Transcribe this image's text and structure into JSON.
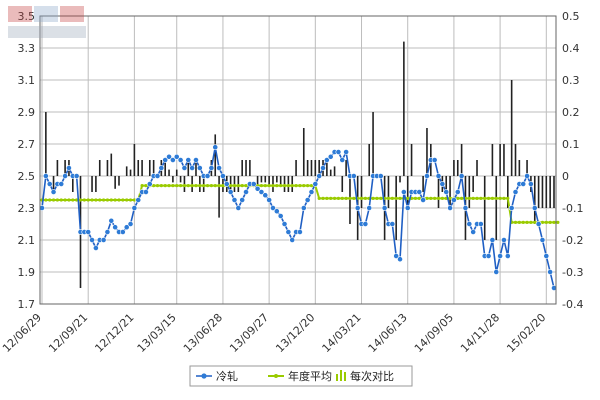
{
  "watermark": {
    "brand_text": "Mysteel.com",
    "seal_text": "我的钢铁"
  },
  "colors": {
    "plot_bg": "#ffffff",
    "grid": "#bdbdbd",
    "axis": "#666666",
    "series_line": "#1f5fc4",
    "series_marker": "#2e7bd6",
    "avg_line": "#9acb00",
    "bar": "#222222"
  },
  "legend": {
    "items": [
      "冷轧",
      "年度平均",
      "每次对比"
    ],
    "placement": "bottom-center"
  },
  "chart_data": {
    "type": "line",
    "title": "",
    "xlabel": "",
    "ylabel": "",
    "ylim": [
      1.7,
      3.5
    ],
    "y2lim": [
      -0.4,
      0.5
    ],
    "y_ticks": [
      "1.7",
      "1.9",
      "2.1",
      "2.3",
      "2.5",
      "2.7",
      "2.9",
      "3.1",
      "3.3",
      "3.5"
    ],
    "y2_ticks": [
      "-0.4",
      "-0.3",
      "-0.2",
      "-0.1",
      "0",
      "0.1",
      "0.2",
      "0.3",
      "0.4",
      "0.5"
    ],
    "x_tick_labels": [
      "12/06/29",
      "12/09/21",
      "12/12/21",
      "13/03/15",
      "13/06/28",
      "13/09/27",
      "13/12/20",
      "14/03/21",
      "14/06/13",
      "14/09/05",
      "14/11/28",
      "15/02/20"
    ],
    "x_tick_index": [
      0,
      12,
      24,
      35,
      47,
      59,
      71,
      83,
      95,
      107,
      119,
      131
    ],
    "grid": true,
    "series": [
      {
        "name": "冷轧",
        "axis": "left",
        "values": [
          2.3,
          2.5,
          2.45,
          2.4,
          2.45,
          2.45,
          2.5,
          2.55,
          2.5,
          2.5,
          2.15,
          2.15,
          2.15,
          2.1,
          2.05,
          2.1,
          2.1,
          2.15,
          2.22,
          2.18,
          2.15,
          2.15,
          2.18,
          2.2,
          2.3,
          2.35,
          2.4,
          2.4,
          2.45,
          2.5,
          2.5,
          2.55,
          2.6,
          2.62,
          2.6,
          2.62,
          2.6,
          2.55,
          2.6,
          2.55,
          2.6,
          2.55,
          2.5,
          2.5,
          2.55,
          2.68,
          2.55,
          2.5,
          2.45,
          2.4,
          2.35,
          2.3,
          2.35,
          2.4,
          2.45,
          2.45,
          2.42,
          2.4,
          2.38,
          2.35,
          2.3,
          2.28,
          2.25,
          2.2,
          2.15,
          2.1,
          2.15,
          2.15,
          2.3,
          2.35,
          2.4,
          2.45,
          2.5,
          2.55,
          2.6,
          2.62,
          2.65,
          2.65,
          2.6,
          2.65,
          2.5,
          2.5,
          2.3,
          2.2,
          2.2,
          2.3,
          2.5,
          2.5,
          2.5,
          2.3,
          2.2,
          2.2,
          2.0,
          1.98,
          2.4,
          2.3,
          2.4,
          2.4,
          2.4,
          2.35,
          2.5,
          2.6,
          2.6,
          2.5,
          2.45,
          2.4,
          2.3,
          2.35,
          2.4,
          2.5,
          2.3,
          2.2,
          2.15,
          2.2,
          2.2,
          2.0,
          2.0,
          2.1,
          1.9,
          2.0,
          2.1,
          2.0,
          2.3,
          2.4,
          2.45,
          2.45,
          2.5,
          2.45,
          2.3,
          2.2,
          2.1,
          2.0,
          1.9,
          1.8
        ]
      },
      {
        "name": "年度平均",
        "axis": "left",
        "values": [
          2.35,
          2.35,
          2.35,
          2.35,
          2.35,
          2.35,
          2.35,
          2.35,
          2.35,
          2.35,
          2.35,
          2.35,
          2.35,
          2.35,
          2.35,
          2.35,
          2.35,
          2.35,
          2.35,
          2.35,
          2.35,
          2.35,
          2.35,
          2.35,
          2.35,
          2.35,
          2.44,
          2.44,
          2.44,
          2.44,
          2.44,
          2.44,
          2.44,
          2.44,
          2.44,
          2.44,
          2.44,
          2.44,
          2.44,
          2.44,
          2.44,
          2.44,
          2.44,
          2.44,
          2.44,
          2.44,
          2.44,
          2.44,
          2.44,
          2.44,
          2.44,
          2.44,
          2.44,
          2.44,
          2.44,
          2.44,
          2.44,
          2.44,
          2.44,
          2.44,
          2.44,
          2.44,
          2.44,
          2.44,
          2.44,
          2.44,
          2.44,
          2.44,
          2.44,
          2.44,
          2.44,
          2.44,
          2.36,
          2.36,
          2.36,
          2.36,
          2.36,
          2.36,
          2.36,
          2.36,
          2.36,
          2.36,
          2.36,
          2.36,
          2.36,
          2.36,
          2.36,
          2.36,
          2.36,
          2.36,
          2.36,
          2.36,
          2.36,
          2.36,
          2.36,
          2.36,
          2.36,
          2.36,
          2.36,
          2.36,
          2.36,
          2.36,
          2.36,
          2.36,
          2.36,
          2.36,
          2.36,
          2.36,
          2.36,
          2.36,
          2.36,
          2.36,
          2.36,
          2.36,
          2.36,
          2.36,
          2.36,
          2.36,
          2.36,
          2.36,
          2.36,
          2.36,
          2.21,
          2.21,
          2.21,
          2.21,
          2.21,
          2.21,
          2.21,
          2.21,
          2.21,
          2.21,
          2.21,
          2.21,
          2.21
        ]
      },
      {
        "name": "每次对比",
        "axis": "right",
        "type": "bar",
        "values": [
          0.0,
          0.2,
          0.0,
          -0.05,
          0.05,
          0.0,
          0.05,
          0.05,
          -0.05,
          0.0,
          -0.35,
          0.0,
          0.0,
          -0.05,
          -0.05,
          0.05,
          0.0,
          0.05,
          0.07,
          -0.04,
          -0.03,
          0.0,
          0.03,
          0.02,
          0.1,
          0.05,
          0.05,
          0.0,
          0.05,
          0.05,
          0.0,
          0.05,
          0.05,
          0.02,
          -0.02,
          0.02,
          -0.02,
          -0.05,
          0.05,
          -0.05,
          0.05,
          -0.05,
          -0.05,
          0.0,
          0.05,
          0.13,
          -0.13,
          -0.05,
          -0.05,
          -0.05,
          -0.05,
          -0.05,
          0.05,
          0.05,
          0.05,
          0.0,
          -0.03,
          -0.02,
          -0.02,
          -0.03,
          -0.05,
          -0.02,
          -0.03,
          -0.05,
          -0.05,
          -0.05,
          0.05,
          0.0,
          0.15,
          0.05,
          0.05,
          0.05,
          0.05,
          0.05,
          0.05,
          0.02,
          0.03,
          0.0,
          -0.05,
          0.05,
          -0.15,
          0.0,
          -0.2,
          -0.1,
          0.0,
          0.1,
          0.2,
          0.0,
          0.0,
          -0.2,
          -0.1,
          0.0,
          -0.2,
          -0.02,
          0.42,
          -0.1,
          0.1,
          0.0,
          0.0,
          -0.05,
          0.15,
          0.1,
          0.0,
          -0.1,
          -0.05,
          -0.05,
          -0.1,
          0.05,
          0.05,
          0.1,
          -0.2,
          -0.1,
          -0.05,
          0.05,
          0.0,
          -0.2,
          0.0,
          0.1,
          -0.2,
          0.1,
          0.1,
          -0.1,
          0.3,
          0.1,
          0.05,
          0.0,
          0.05,
          -0.05,
          -0.15,
          -0.1,
          -0.1,
          -0.1,
          -0.1,
          -0.1
        ]
      }
    ]
  }
}
